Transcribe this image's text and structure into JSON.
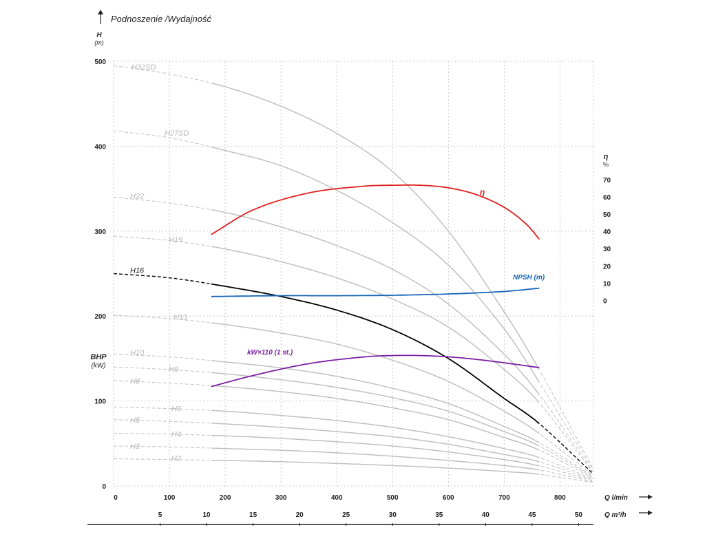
{
  "chart_data": {
    "type": "line",
    "title": "Podnoszenie /Wydajność",
    "y_left": {
      "label": "H",
      "unit": "(m)",
      "range": [
        0,
        500
      ],
      "ticks": [
        0,
        100,
        200,
        300,
        400,
        500
      ]
    },
    "y_left_secondary": {
      "label": "BHP",
      "unit": "(kW)"
    },
    "y_right": {
      "label": "η",
      "unit": "%",
      "ticks": [
        0,
        10,
        20,
        30,
        40,
        50,
        60,
        70
      ]
    },
    "x_primary": {
      "label": "Q l/min",
      "range": [
        0,
        860
      ],
      "ticks": [
        0,
        100,
        200,
        300,
        400,
        500,
        600,
        700,
        800
      ]
    },
    "x_secondary": {
      "label": "Q m³/h",
      "ticks": [
        5,
        10,
        15,
        20,
        25,
        30,
        35,
        40,
        45,
        50
      ]
    },
    "grid": true,
    "highlighted_series": "H16",
    "series": [
      {
        "name": "H32SD",
        "color": "#c0c0c0",
        "values": [
          [
            0,
            495
          ],
          [
            100,
            485
          ],
          [
            200,
            470
          ],
          [
            300,
            447
          ],
          [
            400,
            415
          ],
          [
            500,
            370
          ],
          [
            600,
            300
          ],
          [
            700,
            205
          ],
          [
            760,
            140
          ],
          [
            860,
            20
          ]
        ]
      },
      {
        "name": "H27SD",
        "color": "#c0c0c0",
        "values": [
          [
            0,
            418
          ],
          [
            100,
            410
          ],
          [
            200,
            395
          ],
          [
            300,
            377
          ],
          [
            400,
            348
          ],
          [
            500,
            310
          ],
          [
            600,
            260
          ],
          [
            700,
            185
          ],
          [
            760,
            125
          ],
          [
            860,
            18
          ]
        ]
      },
      {
        "name": "H22",
        "color": "#c0c0c0",
        "values": [
          [
            0,
            340
          ],
          [
            100,
            333
          ],
          [
            200,
            322
          ],
          [
            300,
            305
          ],
          [
            400,
            283
          ],
          [
            500,
            255
          ],
          [
            600,
            214
          ],
          [
            700,
            155
          ],
          [
            760,
            110
          ],
          [
            860,
            16
          ]
        ]
      },
      {
        "name": "H19",
        "color": "#c0c0c0",
        "values": [
          [
            0,
            294
          ],
          [
            100,
            289
          ],
          [
            200,
            279
          ],
          [
            300,
            264
          ],
          [
            400,
            245
          ],
          [
            500,
            220
          ],
          [
            600,
            187
          ],
          [
            700,
            137
          ],
          [
            760,
            100
          ],
          [
            860,
            15
          ]
        ]
      },
      {
        "name": "H16",
        "color": "#000000",
        "values": [
          [
            0,
            250
          ],
          [
            100,
            245
          ],
          [
            200,
            235
          ],
          [
            300,
            223
          ],
          [
            400,
            207
          ],
          [
            500,
            184
          ],
          [
            600,
            150
          ],
          [
            700,
            103
          ],
          [
            760,
            75
          ],
          [
            860,
            14
          ]
        ]
      },
      {
        "name": "H13",
        "color": "#c0c0c0",
        "values": [
          [
            0,
            201
          ],
          [
            100,
            197
          ],
          [
            200,
            190
          ],
          [
            300,
            180
          ],
          [
            400,
            167
          ],
          [
            500,
            148
          ],
          [
            600,
            123
          ],
          [
            700,
            88
          ],
          [
            760,
            63
          ],
          [
            860,
            12
          ]
        ]
      },
      {
        "name": "H10",
        "color": "#c0c0c0",
        "values": [
          [
            0,
            155
          ],
          [
            100,
            152
          ],
          [
            200,
            146
          ],
          [
            300,
            139
          ],
          [
            400,
            129
          ],
          [
            500,
            115
          ],
          [
            600,
            97
          ],
          [
            700,
            70
          ],
          [
            760,
            52
          ],
          [
            860,
            11
          ]
        ]
      },
      {
        "name": "H9",
        "color": "#c0c0c0",
        "values": [
          [
            0,
            140
          ],
          [
            100,
            137
          ],
          [
            200,
            132
          ],
          [
            300,
            125
          ],
          [
            400,
            116
          ],
          [
            500,
            104
          ],
          [
            600,
            88
          ],
          [
            700,
            64
          ],
          [
            760,
            48
          ],
          [
            860,
            10
          ]
        ]
      },
      {
        "name": "H8",
        "color": "#c0c0c0",
        "values": [
          [
            0,
            124
          ],
          [
            100,
            121
          ],
          [
            200,
            117
          ],
          [
            300,
            111
          ],
          [
            400,
            103
          ],
          [
            500,
            92
          ],
          [
            600,
            78
          ],
          [
            700,
            57
          ],
          [
            760,
            43
          ],
          [
            860,
            9
          ]
        ]
      },
      {
        "name": "H6",
        "color": "#c0c0c0",
        "values": [
          [
            0,
            93
          ],
          [
            100,
            91
          ],
          [
            200,
            88
          ],
          [
            300,
            83
          ],
          [
            400,
            77
          ],
          [
            500,
            69
          ],
          [
            600,
            58
          ],
          [
            700,
            44
          ],
          [
            760,
            34
          ],
          [
            860,
            8
          ]
        ]
      },
      {
        "name": "H5",
        "color": "#c0c0c0",
        "values": [
          [
            0,
            78
          ],
          [
            100,
            76
          ],
          [
            200,
            73
          ],
          [
            300,
            69
          ],
          [
            400,
            64
          ],
          [
            500,
            58
          ],
          [
            600,
            49
          ],
          [
            700,
            37
          ],
          [
            760,
            29
          ],
          [
            860,
            7
          ]
        ]
      },
      {
        "name": "H4",
        "color": "#c0c0c0",
        "values": [
          [
            0,
            62
          ],
          [
            100,
            61
          ],
          [
            200,
            59
          ],
          [
            300,
            56
          ],
          [
            400,
            52
          ],
          [
            500,
            47
          ],
          [
            600,
            40
          ],
          [
            700,
            31
          ],
          [
            760,
            24
          ],
          [
            860,
            6
          ]
        ]
      },
      {
        "name": "H3",
        "color": "#c0c0c0",
        "values": [
          [
            0,
            47
          ],
          [
            100,
            46
          ],
          [
            200,
            44
          ],
          [
            300,
            42
          ],
          [
            400,
            39
          ],
          [
            500,
            35
          ],
          [
            600,
            30
          ],
          [
            700,
            24
          ],
          [
            760,
            19
          ],
          [
            860,
            5
          ]
        ]
      },
      {
        "name": "H2",
        "color": "#c0c0c0",
        "values": [
          [
            0,
            32
          ],
          [
            100,
            31
          ],
          [
            200,
            30
          ],
          [
            300,
            28.5
          ],
          [
            400,
            26.5
          ],
          [
            500,
            24
          ],
          [
            600,
            21
          ],
          [
            700,
            17
          ],
          [
            760,
            14
          ],
          [
            860,
            4
          ]
        ]
      }
    ],
    "overlay_curves": [
      {
        "name": "η",
        "color": "#e01e1e",
        "values": [
          [
            175,
            296
          ],
          [
            250,
            325
          ],
          [
            350,
            345
          ],
          [
            450,
            353
          ],
          [
            500,
            354
          ],
          [
            550,
            354
          ],
          [
            600,
            351
          ],
          [
            650,
            343
          ],
          [
            700,
            328
          ],
          [
            740,
            308
          ],
          [
            766,
            288
          ]
        ]
      },
      {
        "name": "NPSH (m)",
        "color": "#1565b8",
        "values": [
          [
            175,
            223
          ],
          [
            300,
            224
          ],
          [
            400,
            224
          ],
          [
            500,
            224.5
          ],
          [
            600,
            226
          ],
          [
            700,
            229
          ],
          [
            766,
            233
          ]
        ]
      },
      {
        "name": "kW×110 (1 st.)",
        "color": "#7b1fa2",
        "values": [
          [
            175,
            117
          ],
          [
            250,
            130
          ],
          [
            350,
            144
          ],
          [
            450,
            152
          ],
          [
            500,
            153.5
          ],
          [
            550,
            153.5
          ],
          [
            600,
            152
          ],
          [
            650,
            149
          ],
          [
            700,
            145
          ],
          [
            766,
            139
          ]
        ]
      }
    ],
    "solid_range": [
      175,
      766
    ]
  }
}
